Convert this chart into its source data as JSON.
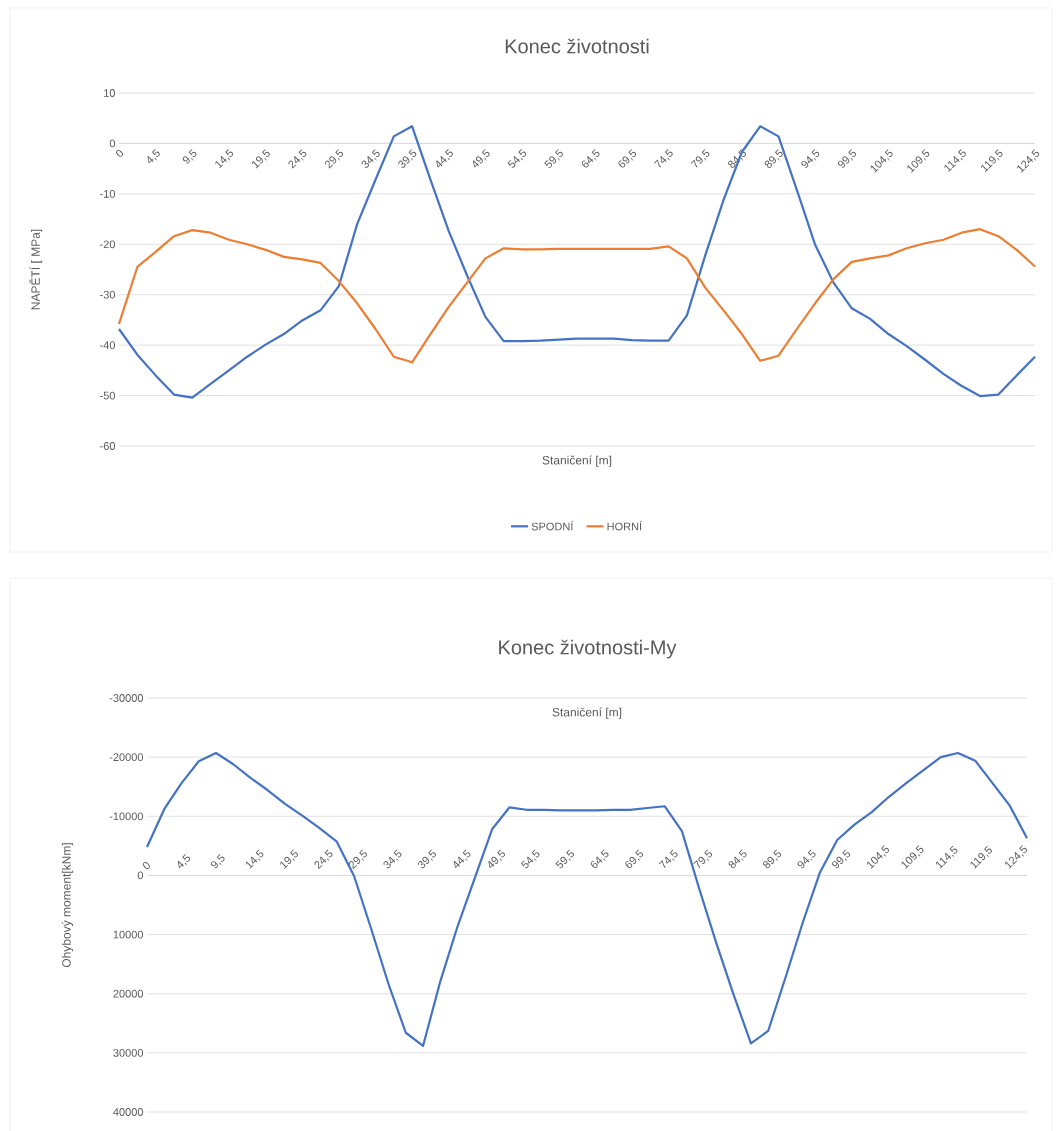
{
  "chart_data": [
    {
      "type": "line",
      "title": "Konec životnosti",
      "xlabel": "Staničení [m]",
      "ylabel": "NAPĚTÍ [ MPa]",
      "categories": [
        "0",
        null,
        "4,5",
        null,
        "9,5",
        null,
        "14,5",
        null,
        "19,5",
        null,
        "24,5",
        null,
        "29,5",
        null,
        "34,5",
        null,
        "39,5",
        null,
        "44,5",
        null,
        "49,5",
        null,
        "54,5",
        null,
        "59,5",
        null,
        "64,5",
        null,
        "69,5",
        null,
        "74,5",
        null,
        "79,5",
        null,
        "84,5",
        null,
        "89,5",
        null,
        "94,5",
        null,
        "99,5",
        null,
        "104,5",
        null,
        "109,5",
        null,
        "114,5",
        null,
        "119,5",
        null,
        "124,5"
      ],
      "series": [
        {
          "name": "SPODNÍ",
          "color": "#4472c4",
          "values": [
            -36.8,
            -41.9,
            -46,
            -49.8,
            -50.4,
            -47.7,
            -45,
            -42.3,
            -39.9,
            -37.8,
            -35.1,
            -33.1,
            -28.3,
            -16,
            -7.2,
            1.4,
            3.4,
            -7.2,
            -17.4,
            -26.2,
            -34.4,
            -39.2,
            -39.2,
            -39.1,
            -38.9,
            -38.7,
            -38.7,
            -38.7,
            -39,
            -39.1,
            -39.1,
            -34.1,
            -22.2,
            -11.2,
            -1.7,
            3.4,
            1.4,
            -9.2,
            -20.1,
            -27.6,
            -32.7,
            -34.8,
            -37.8,
            -40.2,
            -42.9,
            -45.7,
            -48.1,
            -50.1,
            -49.8,
            -46,
            -42.3
          ]
        },
        {
          "name": "HORNÍ",
          "color": "#ed7d31",
          "values": [
            -35.8,
            -24.5,
            -21.5,
            -18.4,
            -17.2,
            -17.7,
            -19.1,
            -20,
            -21.1,
            -22.5,
            -23,
            -23.7,
            -27.3,
            -31.7,
            -36.8,
            -42.3,
            -43.4,
            -37.8,
            -32.4,
            -27.6,
            -22.8,
            -20.8,
            -21,
            -21,
            -20.9,
            -20.9,
            -20.9,
            -20.9,
            -20.9,
            -20.9,
            -20.4,
            -22.8,
            -28.6,
            -33.1,
            -37.8,
            -43.1,
            -42.1,
            -36.8,
            -31.7,
            -26.9,
            -23.5,
            -22.8,
            -22.2,
            -20.8,
            -19.8,
            -19.1,
            -17.7,
            -17,
            -18.4,
            -21.1,
            -24.4
          ]
        }
      ],
      "ylim": [
        -60,
        10
      ],
      "yticks": [
        -60,
        -50,
        -40,
        -30,
        -20,
        -10,
        0,
        10
      ],
      "grid": "y",
      "legend": "bottom",
      "marker": "none",
      "line_style": "solid"
    },
    {
      "type": "line",
      "title": "Konec životnosti-My",
      "xlabel": "Staničení [m]",
      "ylabel": "Ohybový moment[kNm]",
      "categories": [
        "0",
        null,
        "4,5",
        null,
        "9,5",
        null,
        "14,5",
        null,
        "19,5",
        null,
        "24,5",
        null,
        "29,5",
        null,
        "34,5",
        null,
        "39,5",
        null,
        "44,5",
        null,
        "49,5",
        null,
        "54,5",
        null,
        "59,5",
        null,
        "64,5",
        null,
        "69,5",
        null,
        "74,5",
        null,
        "79,5",
        null,
        "84,5",
        null,
        "89,5",
        null,
        "94,5",
        null,
        "99,5",
        null,
        "104,5",
        null,
        "109,5",
        null,
        "114,5",
        null,
        "119,5",
        null,
        "124,5",
        null
      ],
      "series": [
        {
          "color": "#4472c4",
          "values": [
            -4800,
            -11200,
            -15600,
            -19300,
            -20700,
            -18800,
            -16500,
            -14400,
            -12100,
            -10100,
            -8000,
            -5700,
            100,
            9100,
            18400,
            26600,
            28800,
            17900,
            8600,
            400,
            -7800,
            -11500,
            -11100,
            -11100,
            -11000,
            -11000,
            -11000,
            -11100,
            -11100,
            -11400,
            -11700,
            -7500,
            2200,
            11500,
            20200,
            28400,
            26300,
            17300,
            8000,
            -500,
            -6000,
            -8600,
            -10700,
            -13300,
            -15600,
            -17800,
            -20000,
            -20700,
            -19400,
            -15600,
            -11800,
            -6300
          ]
        }
      ],
      "ylim": [
        40000,
        -30000
      ],
      "yticks": [
        -30000,
        -20000,
        -10000,
        0,
        10000,
        20000,
        30000,
        40000
      ],
      "grid": "y",
      "legend": false,
      "marker": "none",
      "line_style": "solid"
    }
  ]
}
